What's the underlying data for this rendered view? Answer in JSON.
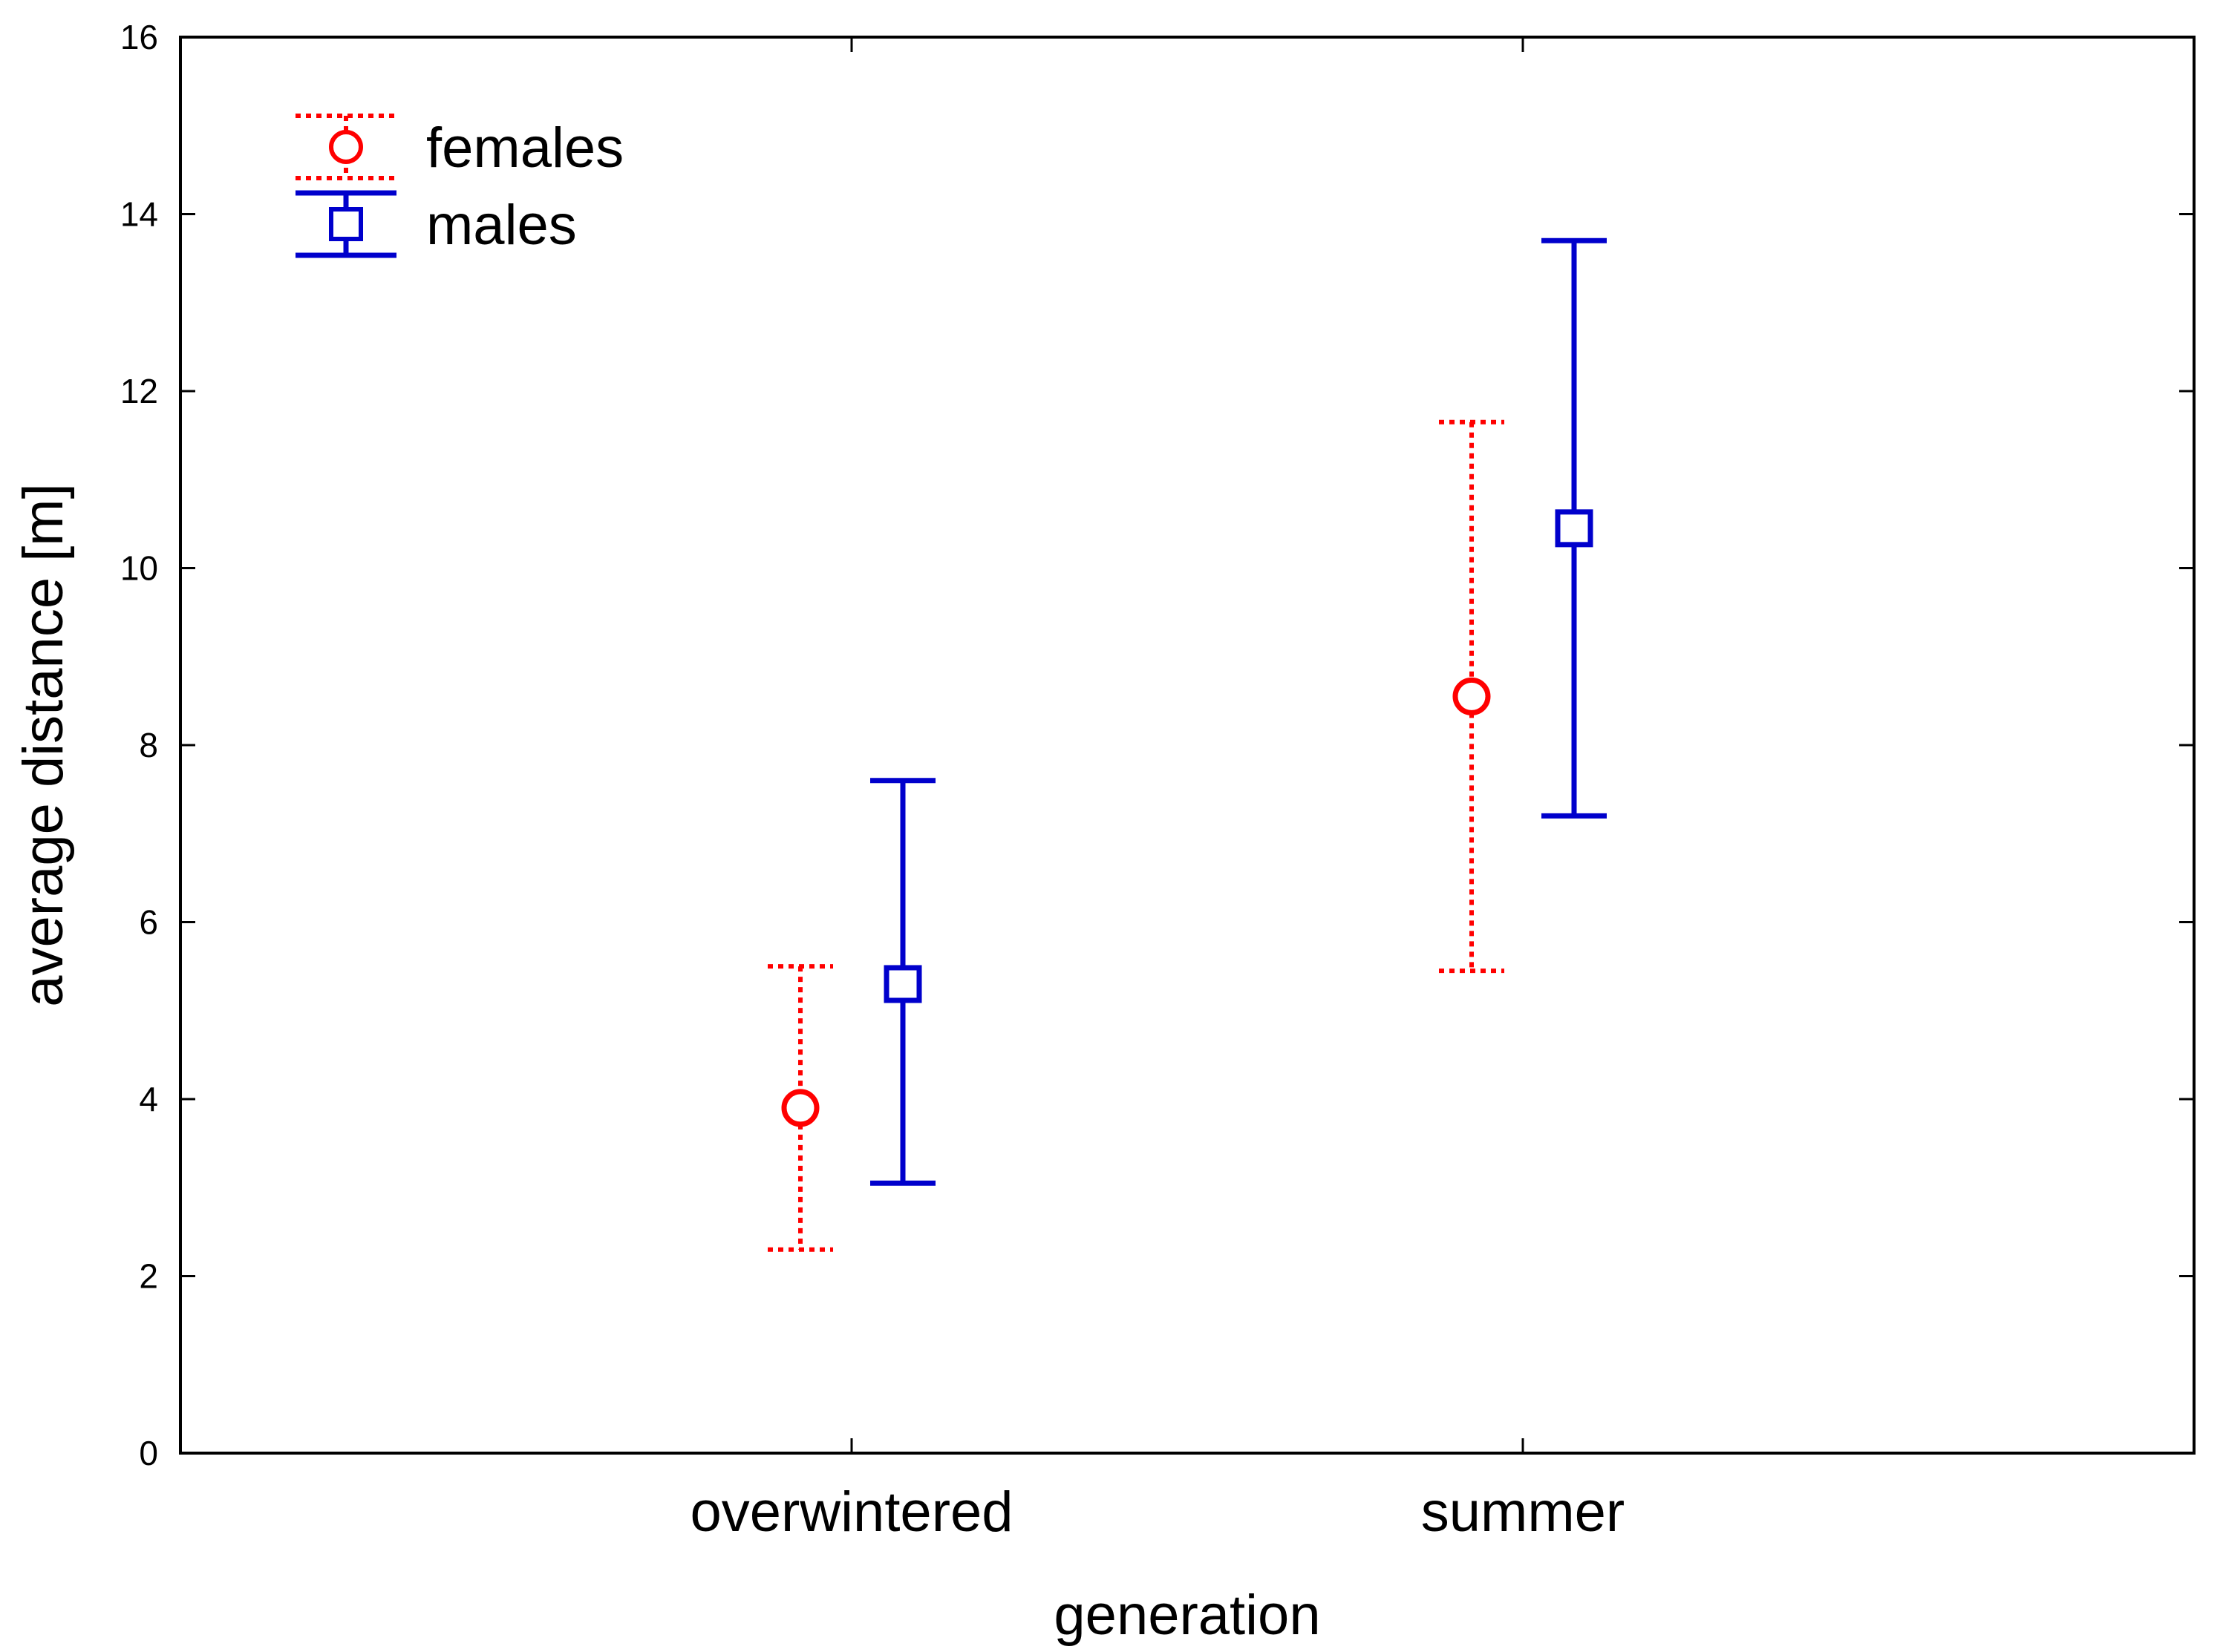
{
  "chart_data": {
    "type": "scatter",
    "title": "",
    "xlabel": "generation",
    "ylabel": "average distance [m]",
    "ylim": [
      0,
      16
    ],
    "yticks": [
      0,
      2,
      4,
      6,
      8,
      10,
      12,
      14,
      16
    ],
    "categories": [
      "overwintered",
      "summer"
    ],
    "legend_position": "top-left",
    "series": [
      {
        "name": "females",
        "color": "#ff0000",
        "marker": "circle",
        "line_style": "dotted",
        "values": [
          3.9,
          8.55
        ],
        "lower": [
          2.3,
          5.45
        ],
        "upper": [
          5.5,
          11.65
        ]
      },
      {
        "name": "males",
        "color": "#0000cc",
        "marker": "square",
        "line_style": "solid",
        "values": [
          5.3,
          10.45
        ],
        "lower": [
          3.05,
          7.2
        ],
        "upper": [
          7.6,
          13.7
        ]
      }
    ]
  }
}
